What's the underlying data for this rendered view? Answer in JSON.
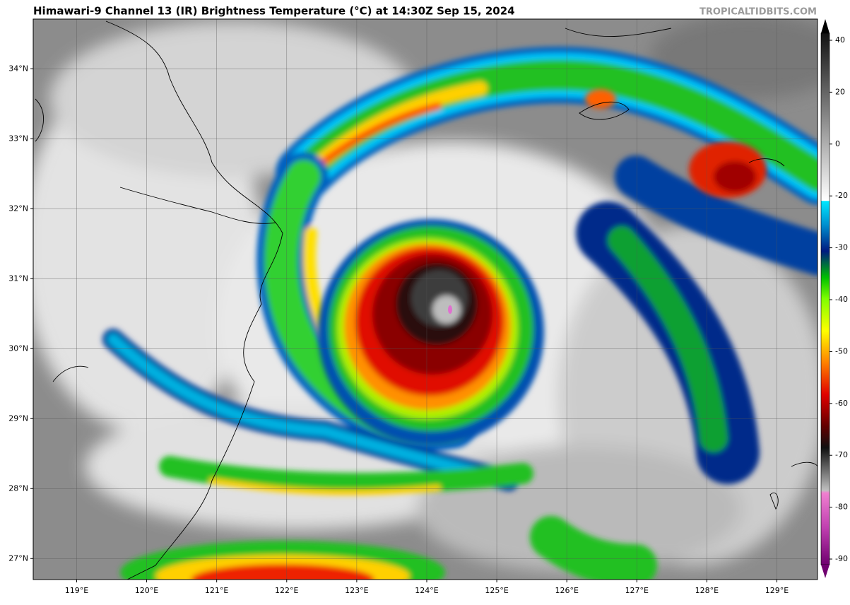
{
  "map_data": {
    "title": "Himawari-9 Channel 13 (IR) Brightness Temperature (°C) at 14:30Z Sep 15, 2024",
    "watermark": "TROPICALTIDBITS.COM",
    "xlim": [
      118.38,
      129.58
    ],
    "ylim": [
      26.7,
      34.71
    ],
    "lon_ticks": [
      {
        "value": 119,
        "label": "119°E"
      },
      {
        "value": 120,
        "label": "120°E"
      },
      {
        "value": 121,
        "label": "121°E"
      },
      {
        "value": 122,
        "label": "122°E"
      },
      {
        "value": 123,
        "label": "123°E"
      },
      {
        "value": 124,
        "label": "124°E"
      },
      {
        "value": 125,
        "label": "125°E"
      },
      {
        "value": 126,
        "label": "126°E"
      },
      {
        "value": 127,
        "label": "127°E"
      },
      {
        "value": 128,
        "label": "128°E"
      },
      {
        "value": 129,
        "label": "129°E"
      }
    ],
    "lat_ticks": [
      {
        "value": 27,
        "label": "27°N"
      },
      {
        "value": 28,
        "label": "28°N"
      },
      {
        "value": 29,
        "label": "29°N"
      },
      {
        "value": 30,
        "label": "30°N"
      },
      {
        "value": 31,
        "label": "31°N"
      },
      {
        "value": 32,
        "label": "32°N"
      },
      {
        "value": 33,
        "label": "33°N"
      },
      {
        "value": 34,
        "label": "34°N"
      }
    ],
    "grid": true,
    "colorbar": {
      "ticks": [
        40,
        20,
        0,
        -20,
        -30,
        -40,
        -50,
        -60,
        -70,
        -80,
        -90
      ]
    }
  }
}
